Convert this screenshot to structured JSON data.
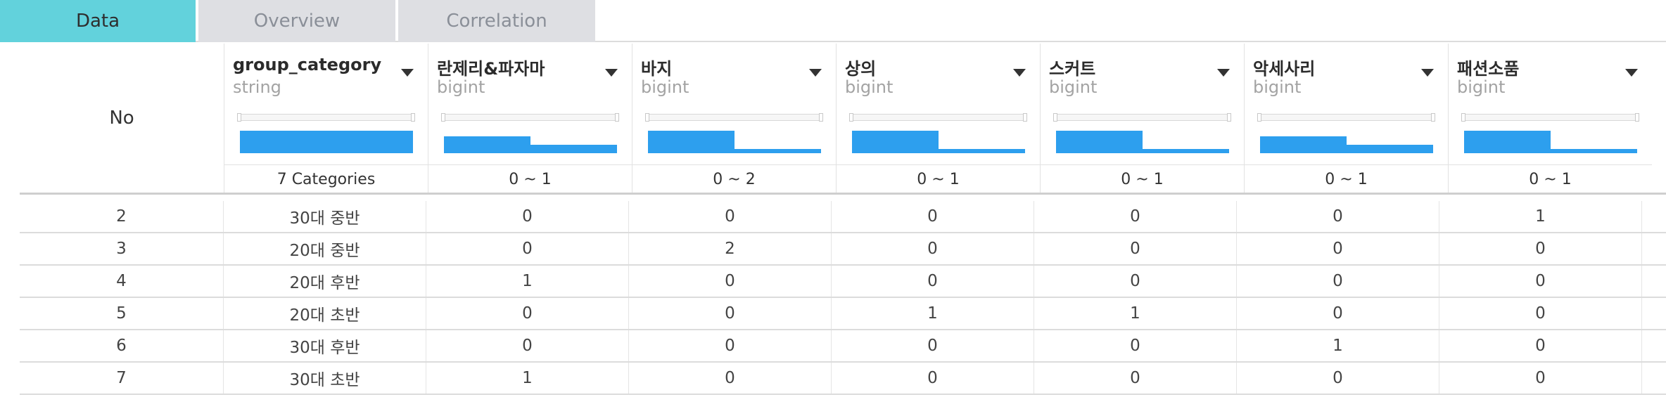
{
  "tabs": [
    {
      "label": "Data",
      "active": true
    },
    {
      "label": "Overview",
      "active": false
    },
    {
      "label": "Correlation",
      "active": false
    }
  ],
  "table": {
    "no_header": "No",
    "columns": [
      {
        "name": "group_category",
        "type": "string",
        "range": "7 Categories",
        "hist": [
          1.0
        ]
      },
      {
        "name": "란제리&파자마",
        "type": "bigint",
        "range": "0 ~ 1",
        "hist": [
          0.75,
          0.37
        ]
      },
      {
        "name": "바지",
        "type": "bigint",
        "range": "0 ~ 2",
        "hist": [
          1.0,
          0.2
        ]
      },
      {
        "name": "상의",
        "type": "bigint",
        "range": "0 ~ 1",
        "hist": [
          1.0,
          0.2
        ]
      },
      {
        "name": "스커트",
        "type": "bigint",
        "range": "0 ~ 1",
        "hist": [
          1.0,
          0.2
        ]
      },
      {
        "name": "악세사리",
        "type": "bigint",
        "range": "0 ~ 1",
        "hist": [
          0.75,
          0.37
        ]
      },
      {
        "name": "패션소품",
        "type": "bigint",
        "range": "0 ~ 1",
        "hist": [
          1.0,
          0.2
        ]
      }
    ],
    "rows": [
      [
        "2",
        "30대 중반",
        "0",
        "0",
        "0",
        "0",
        "0",
        "1"
      ],
      [
        "3",
        "20대 중반",
        "0",
        "2",
        "0",
        "0",
        "0",
        "0"
      ],
      [
        "4",
        "20대 후반",
        "1",
        "0",
        "0",
        "0",
        "0",
        "0"
      ],
      [
        "5",
        "20대 초반",
        "0",
        "0",
        "1",
        "1",
        "0",
        "0"
      ],
      [
        "6",
        "30대 후반",
        "0",
        "0",
        "0",
        "0",
        "1",
        "0"
      ],
      [
        "7",
        "30대 초반",
        "1",
        "0",
        "0",
        "0",
        "0",
        "0"
      ]
    ]
  },
  "colors": {
    "accent_tab": "#62d2dc",
    "histogram": "#2d9fee"
  },
  "icons": {
    "column_menu": "caret-down-icon"
  }
}
